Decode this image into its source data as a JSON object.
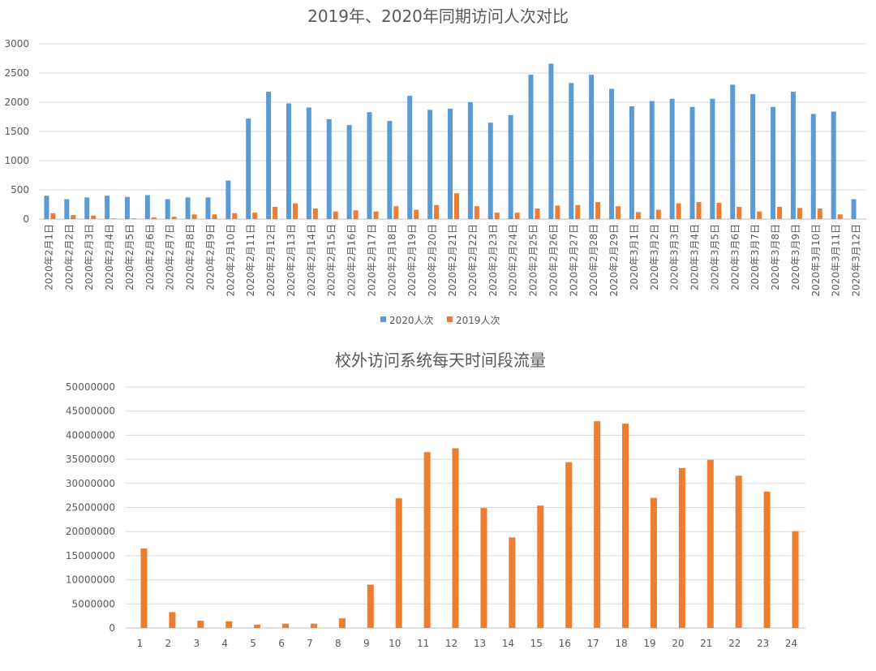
{
  "colors": {
    "series_2020": "#5b9bd5",
    "series_2019": "#ed7d31",
    "text": "#595959",
    "grid": "#d9d9d9"
  },
  "chart_data": [
    {
      "type": "bar",
      "title": "2019年、2020年同期访问人次对比",
      "xlabel": "",
      "ylabel": "",
      "ylim": [
        0,
        3000
      ],
      "yticks": [
        "0",
        "500",
        "1000",
        "1500",
        "2000",
        "2500",
        "3000"
      ],
      "grid": true,
      "legend": "bottom",
      "categories": [
        "2020年2月1日",
        "2020年2月2日",
        "2020年2月3日",
        "2020年2月4日",
        "2020年2月5日",
        "2020年2月6日",
        "2020年2月7日",
        "2020年2月8日",
        "2020年2月9日",
        "2020年2月10日",
        "2020年2月11日",
        "2020年2月12日",
        "2020年2月13日",
        "2020年2月14日",
        "2020年2月15日",
        "2020年2月16日",
        "2020年2月17日",
        "2020年2月18日",
        "2020年2月19日",
        "2020年2月20日",
        "2020年2月21日",
        "2020年2月22日",
        "2020年2月23日",
        "2020年2月24日",
        "2020年2月25日",
        "2020年2月26日",
        "2020年2月27日",
        "2020年2月28日",
        "2020年2月29日",
        "2020年3月1日",
        "2020年3月2日",
        "2020年3月3日",
        "2020年3月4日",
        "2020年3月5日",
        "2020年3月6日",
        "2020年3月7日",
        "2020年3月8日",
        "2020年3月9日",
        "2020年3月10日",
        "2020年3月11日",
        "2020年3月12日"
      ],
      "series": [
        {
          "name": "2020人次",
          "values": [
            400,
            340,
            370,
            400,
            380,
            410,
            340,
            370,
            370,
            660,
            1720,
            2180,
            1980,
            1910,
            1710,
            1610,
            1830,
            1680,
            2110,
            1870,
            1890,
            2000,
            1650,
            1780,
            2470,
            2660,
            2330,
            2470,
            2230,
            1930,
            2020,
            2060,
            1920,
            2060,
            2300,
            2140,
            1920,
            2180,
            1800,
            1840,
            340
          ]
        },
        {
          "name": "2019人次",
          "values": [
            100,
            70,
            60,
            10,
            10,
            30,
            40,
            80,
            80,
            100,
            110,
            210,
            270,
            180,
            130,
            150,
            130,
            220,
            160,
            240,
            440,
            220,
            110,
            110,
            180,
            230,
            240,
            290,
            220,
            120,
            160,
            270,
            290,
            280,
            210,
            130,
            210,
            190,
            180,
            80,
            0
          ]
        }
      ]
    },
    {
      "type": "bar",
      "title": "校外访问系统每天时间段流量",
      "xlabel": "",
      "ylabel": "",
      "ylim": [
        0,
        50000000
      ],
      "yticks": [
        "0",
        "5000000",
        "10000000",
        "15000000",
        "20000000",
        "25000000",
        "30000000",
        "35000000",
        "40000000",
        "45000000",
        "50000000"
      ],
      "grid": true,
      "categories": [
        "1",
        "2",
        "3",
        "4",
        "5",
        "6",
        "7",
        "8",
        "9",
        "10",
        "11",
        "12",
        "13",
        "14",
        "15",
        "16",
        "17",
        "18",
        "19",
        "20",
        "21",
        "22",
        "23",
        "24"
      ],
      "values": [
        16500000,
        3300000,
        1500000,
        1400000,
        700000,
        900000,
        900000,
        2000000,
        9000000,
        26900000,
        36500000,
        37300000,
        24900000,
        18800000,
        25400000,
        34400000,
        42900000,
        42400000,
        27000000,
        33200000,
        34900000,
        31600000,
        28300000,
        20100000
      ]
    }
  ]
}
